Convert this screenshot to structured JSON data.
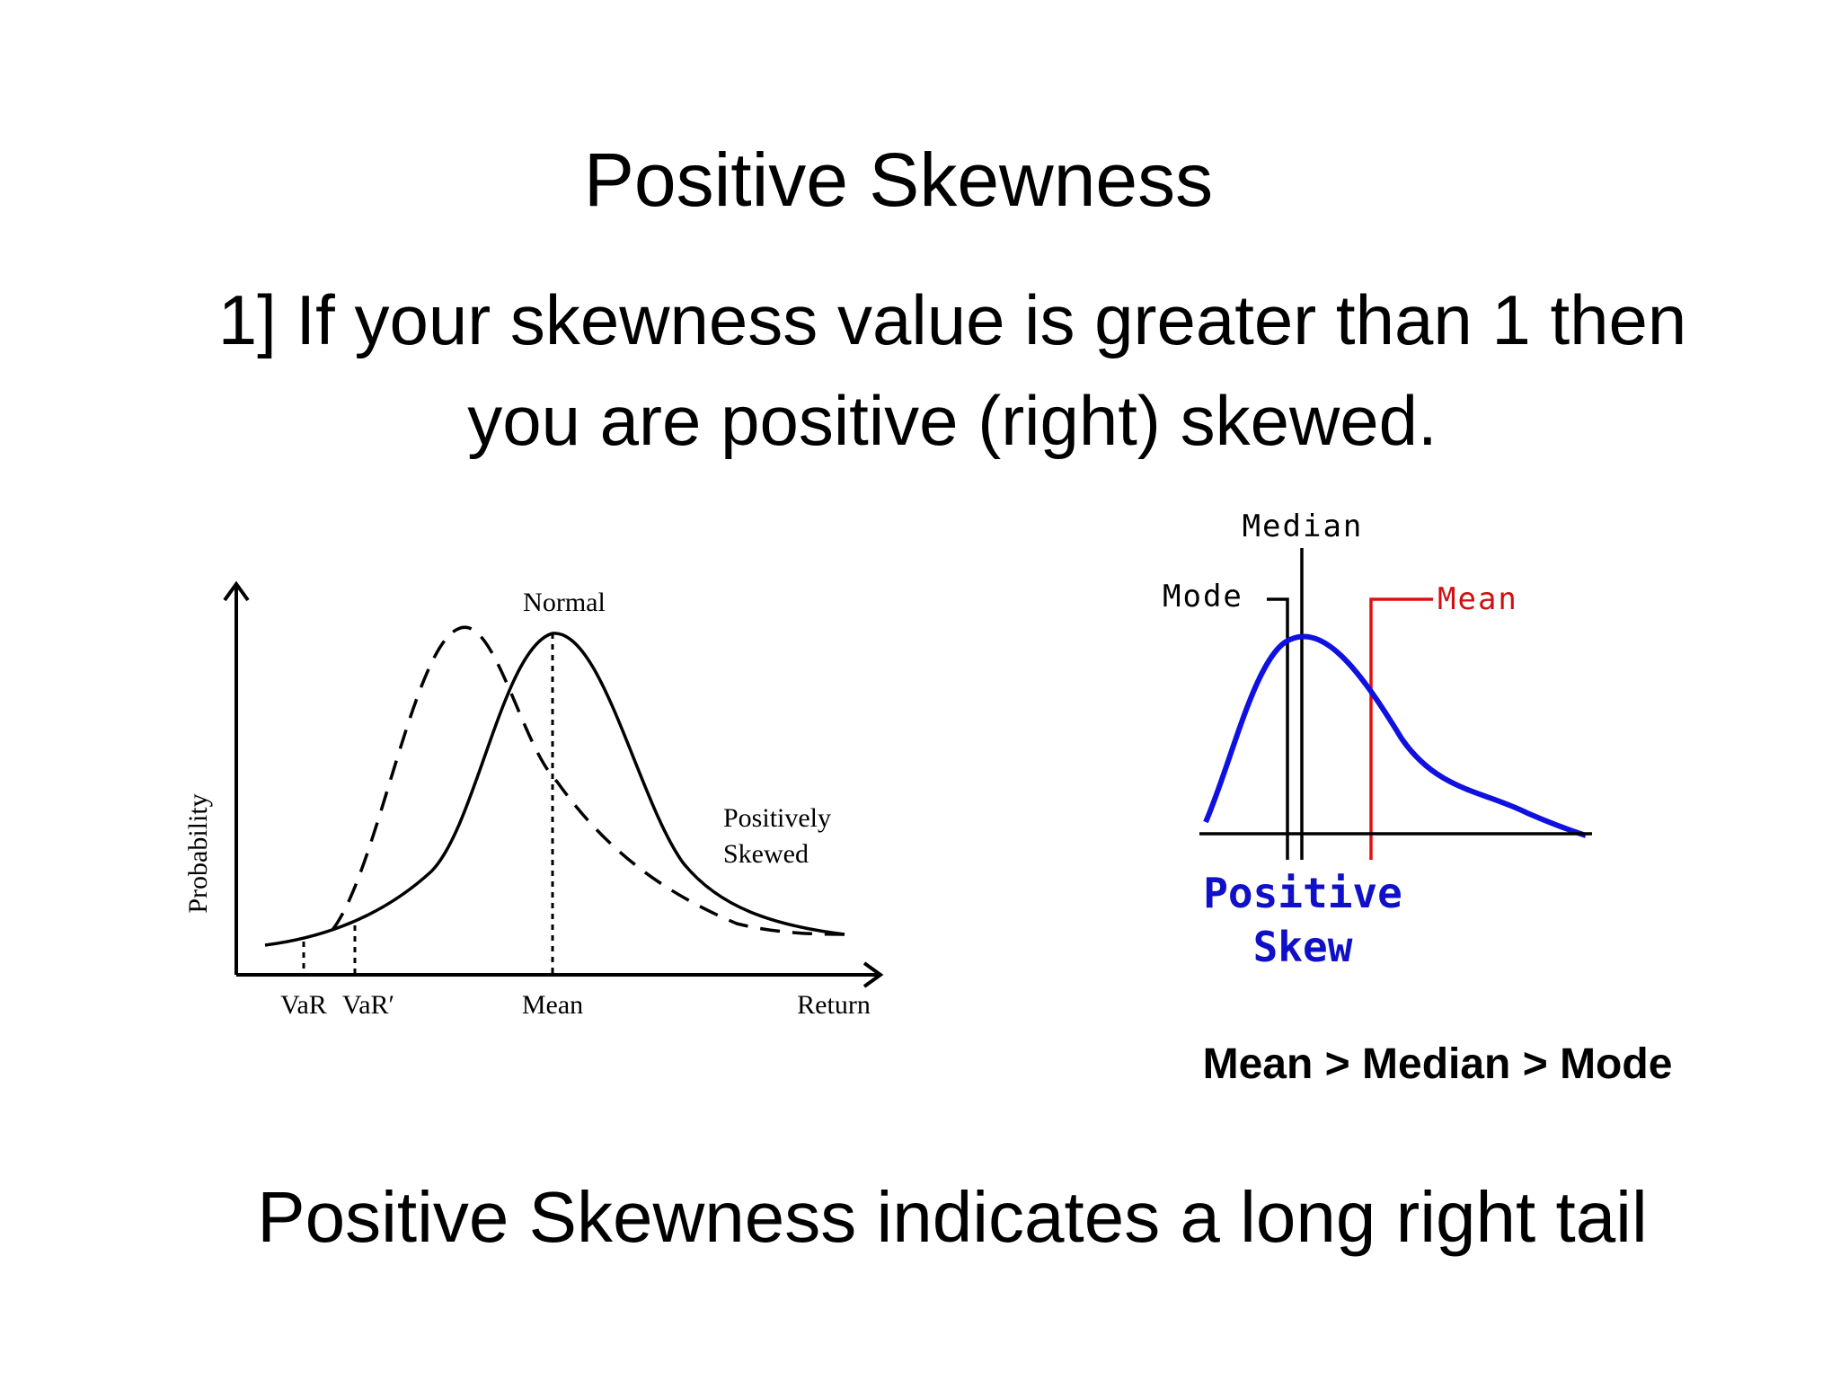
{
  "slide": {
    "title": "Positive Skewness",
    "point": "1] If your skewness value is greater than 1 then you are positive (right) skewed.",
    "relation": "Mean > Median > Mode",
    "footer": "Positive Skewness indicates a long right tail"
  },
  "left_diagram": {
    "y_axis_label": "Probability",
    "normal_label": "Normal",
    "skewed_label_line1": "Positively",
    "skewed_label_line2": "Skewed",
    "x_ticks": [
      "VaR",
      "VaR′",
      "Mean",
      "Return"
    ]
  },
  "right_diagram": {
    "median_label": "Median",
    "mode_label": "Mode",
    "mean_label": "Mean",
    "caption_line1": "Positive",
    "caption_line2": "Skew",
    "colors": {
      "curve": "#1010e0",
      "mean_line": "#e01010",
      "caption": "#1010c8",
      "mean_text": "#d01010"
    }
  }
}
